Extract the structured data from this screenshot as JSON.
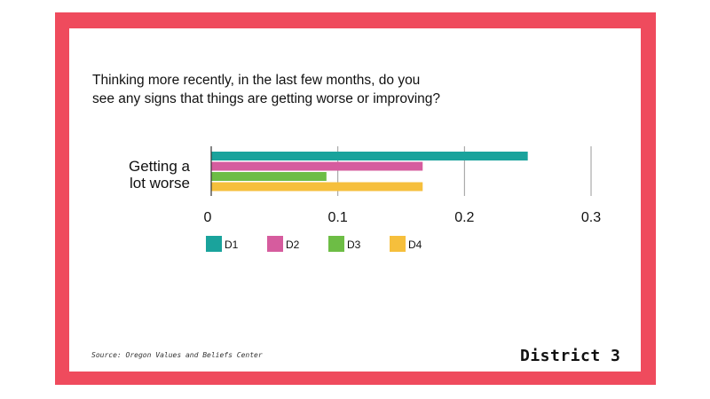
{
  "question": {
    "line1": "Thinking more recently, in the last few months, do you",
    "line2": "see any signs that things are getting worse or improving?"
  },
  "chart_data": {
    "type": "bar",
    "orientation": "horizontal",
    "categories": [
      "Getting a lot worse"
    ],
    "category_label_lines": [
      "Getting a",
      "lot worse"
    ],
    "series": [
      {
        "name": "D1",
        "values": [
          0.25
        ],
        "color": "#1aa39c"
      },
      {
        "name": "D2",
        "values": [
          0.167
        ],
        "color": "#d65c9e"
      },
      {
        "name": "D3",
        "values": [
          0.091
        ],
        "color": "#6dbd45"
      },
      {
        "name": "D4",
        "values": [
          0.167
        ],
        "color": "#f6bf3c"
      }
    ],
    "x_ticks": [
      0,
      0.1,
      0.2,
      0.3
    ],
    "x_tick_labels": [
      "0",
      "0.1",
      "0.2",
      "0.3"
    ],
    "xlim": [
      0,
      0.3
    ],
    "grid": true,
    "legend_position": "bottom-left"
  },
  "footer": {
    "source": "Source: Oregon Values and Beliefs Center",
    "district": "District 3"
  },
  "colors": {
    "frame": "#ef4b5d",
    "grid": "#9a9a9a"
  }
}
